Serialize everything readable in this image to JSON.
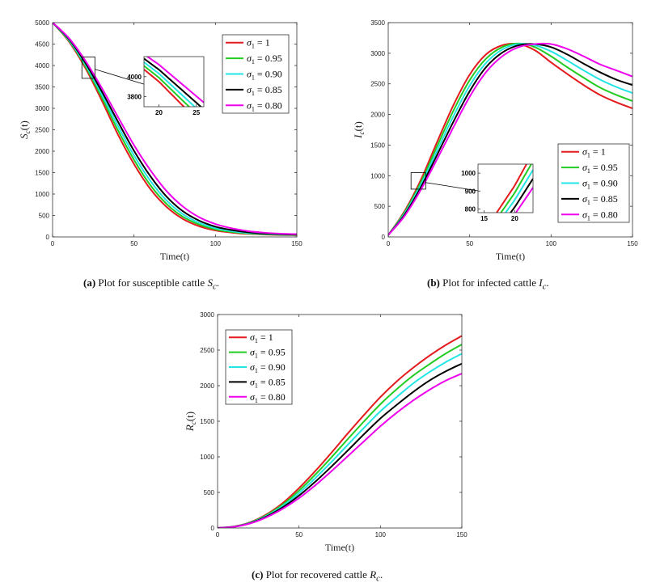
{
  "colors": {
    "series": [
      "#e41a1c",
      "#22cc22",
      "#22e6e6",
      "#000000",
      "#ee00ee"
    ]
  },
  "captions": [
    {
      "label": "(a)",
      "text": " Plot for susceptible cattle ",
      "sym": "S",
      "sub": "c",
      "end": "."
    },
    {
      "label": "(b)",
      "text": " Plot for infected cattle ",
      "sym": "I",
      "sub": "c",
      "end": "."
    },
    {
      "label": "(c)",
      "text": " Plot for recovered cattle ",
      "sym": "R",
      "sub": "c",
      "end": "."
    }
  ],
  "chart_data": [
    {
      "type": "line",
      "id": "susceptible",
      "xlabel": "Time(t)",
      "ylabel": "S_c(t)",
      "xlim": [
        0,
        150
      ],
      "ylim": [
        0,
        5000
      ],
      "xticks": [
        0,
        50,
        100,
        150
      ],
      "yticks": [
        0,
        500,
        1000,
        1500,
        2000,
        2500,
        3000,
        3500,
        4000,
        4500,
        5000
      ],
      "x": [
        0,
        10,
        20,
        30,
        40,
        50,
        60,
        70,
        80,
        90,
        100,
        110,
        120,
        130,
        140,
        150
      ],
      "legend_position": "top-right",
      "series": [
        {
          "name": "σ1 = 1",
          "values": [
            5000,
            4560,
            3950,
            3200,
            2400,
            1700,
            1120,
            700,
            420,
            250,
            150,
            100,
            70,
            55,
            45,
            40
          ]
        },
        {
          "name": "σ1 = 0.95",
          "values": [
            5000,
            4580,
            3990,
            3270,
            2500,
            1800,
            1210,
            770,
            470,
            290,
            175,
            115,
            80,
            62,
            50,
            45
          ]
        },
        {
          "name": "σ1 = 0.90",
          "values": [
            5000,
            4600,
            4030,
            3340,
            2600,
            1900,
            1310,
            850,
            530,
            330,
            205,
            135,
            92,
            70,
            56,
            50
          ]
        },
        {
          "name": "σ1 = 0.85",
          "values": [
            5000,
            4620,
            4070,
            3410,
            2700,
            2010,
            1420,
            940,
            600,
            380,
            240,
            160,
            108,
            80,
            64,
            55
          ]
        },
        {
          "name": "σ1 = 0.80",
          "values": [
            5000,
            4640,
            4120,
            3490,
            2810,
            2140,
            1560,
            1070,
            710,
            460,
            300,
            200,
            135,
            98,
            76,
            65
          ]
        }
      ],
      "inset": {
        "xlim": [
          18,
          26
        ],
        "ylim": [
          3700,
          4200
        ],
        "xticks": [
          20,
          25
        ],
        "yticks": [
          3800,
          4000
        ]
      }
    },
    {
      "type": "line",
      "id": "infected",
      "xlabel": "Time(t)",
      "ylabel": "I_c(t)",
      "xlim": [
        0,
        150
      ],
      "ylim": [
        0,
        3500
      ],
      "xticks": [
        0,
        50,
        100,
        150
      ],
      "yticks": [
        0,
        500,
        1000,
        1500,
        2000,
        2500,
        3000,
        3500
      ],
      "x": [
        0,
        10,
        20,
        30,
        40,
        50,
        60,
        70,
        80,
        90,
        100,
        110,
        120,
        130,
        140,
        150
      ],
      "legend_position": "right",
      "series": [
        {
          "name": "σ1 = 1",
          "values": [
            30,
            420,
            930,
            1550,
            2150,
            2650,
            2980,
            3130,
            3150,
            3050,
            2850,
            2660,
            2480,
            2320,
            2200,
            2100
          ]
        },
        {
          "name": "σ1 = 0.95",
          "values": [
            30,
            400,
            890,
            1480,
            2060,
            2560,
            2910,
            3100,
            3160,
            3100,
            2950,
            2770,
            2600,
            2440,
            2320,
            2220
          ]
        },
        {
          "name": "σ1 = 0.90",
          "values": [
            30,
            380,
            850,
            1410,
            1970,
            2470,
            2840,
            3060,
            3150,
            3130,
            3030,
            2880,
            2720,
            2570,
            2450,
            2350
          ]
        },
        {
          "name": "σ1 = 0.85",
          "values": [
            30,
            360,
            810,
            1340,
            1880,
            2380,
            2770,
            3010,
            3130,
            3150,
            3100,
            2980,
            2830,
            2690,
            2570,
            2480
          ]
        },
        {
          "name": "σ1 = 0.80",
          "values": [
            30,
            340,
            770,
            1270,
            1790,
            2290,
            2690,
            2950,
            3100,
            3150,
            3150,
            3070,
            2950,
            2820,
            2720,
            2620
          ]
        }
      ],
      "inset": {
        "xlim": [
          14,
          23
        ],
        "ylim": [
          780,
          1050
        ],
        "xticks": [
          15,
          20
        ],
        "yticks": [
          800,
          900,
          1000
        ]
      }
    },
    {
      "type": "line",
      "id": "recovered",
      "xlabel": "Time(t)",
      "ylabel": "R_c(t)",
      "xlim": [
        0,
        150
      ],
      "ylim": [
        0,
        3000
      ],
      "xticks": [
        0,
        50,
        100,
        150
      ],
      "yticks": [
        0,
        500,
        1000,
        1500,
        2000,
        2500,
        3000
      ],
      "x": [
        0,
        10,
        20,
        30,
        40,
        50,
        60,
        70,
        80,
        90,
        100,
        110,
        120,
        130,
        140,
        150
      ],
      "legend_position": "top-left",
      "series": [
        {
          "name": "σ1 = 1",
          "values": [
            0,
            20,
            80,
            190,
            350,
            560,
            800,
            1060,
            1330,
            1590,
            1840,
            2060,
            2250,
            2420,
            2570,
            2700
          ]
        },
        {
          "name": "σ1 = 0.95",
          "values": [
            0,
            19,
            76,
            180,
            330,
            525,
            750,
            995,
            1250,
            1500,
            1740,
            1950,
            2140,
            2300,
            2450,
            2580
          ]
        },
        {
          "name": "σ1 = 0.90",
          "values": [
            0,
            18,
            72,
            170,
            310,
            490,
            700,
            930,
            1170,
            1410,
            1640,
            1840,
            2030,
            2190,
            2330,
            2450
          ]
        },
        {
          "name": "σ1 = 0.85",
          "values": [
            0,
            17,
            68,
            160,
            290,
            455,
            650,
            865,
            1090,
            1320,
            1540,
            1730,
            1910,
            2070,
            2200,
            2310
          ]
        },
        {
          "name": "σ1 = 0.80",
          "values": [
            0,
            16,
            64,
            150,
            270,
            420,
            600,
            800,
            1010,
            1220,
            1430,
            1620,
            1790,
            1940,
            2070,
            2170
          ]
        }
      ]
    }
  ]
}
